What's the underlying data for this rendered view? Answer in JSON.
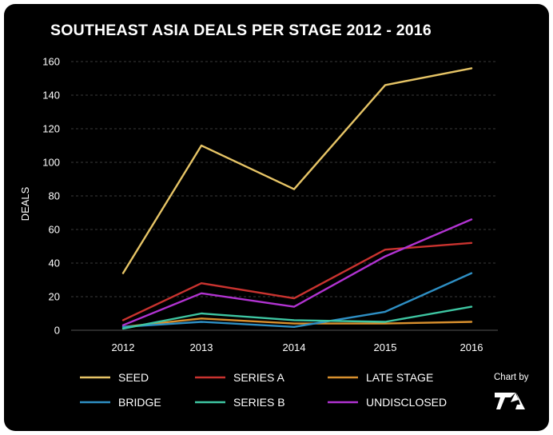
{
  "chart_data": {
    "type": "line",
    "title": "SOUTHEAST ASIA DEALS PER STAGE 2012 - 2016",
    "xlabel": "",
    "ylabel": "DEALS",
    "x": [
      "2012",
      "2013",
      "2014",
      "2015",
      "2016"
    ],
    "ylim": [
      0,
      160
    ],
    "yticks": [
      "0",
      "20",
      "40",
      "60",
      "80",
      "100",
      "120",
      "140",
      "160"
    ],
    "grid": true,
    "legend_position": "bottom",
    "series": [
      {
        "name": "SEED",
        "color": "#e6c466",
        "values": [
          34,
          110,
          84,
          146,
          156
        ]
      },
      {
        "name": "SERIES A",
        "color": "#c9332f",
        "values": [
          6,
          28,
          19,
          48,
          52
        ]
      },
      {
        "name": "LATE STAGE",
        "color": "#d9902e",
        "values": [
          2,
          7,
          4,
          4,
          5
        ]
      },
      {
        "name": "BRIDGE",
        "color": "#2e8fc4",
        "values": [
          2,
          5,
          2,
          11,
          34
        ]
      },
      {
        "name": "SERIES B",
        "color": "#3ec6a2",
        "values": [
          1,
          10,
          6,
          5,
          14
        ]
      },
      {
        "name": "UNDISCLOSED",
        "color": "#b133d1",
        "values": [
          3,
          22,
          14,
          44,
          66
        ]
      }
    ]
  },
  "credit": {
    "text": "Chart by",
    "logo": "TA",
    "logo_icon": "ta-logo-icon"
  }
}
